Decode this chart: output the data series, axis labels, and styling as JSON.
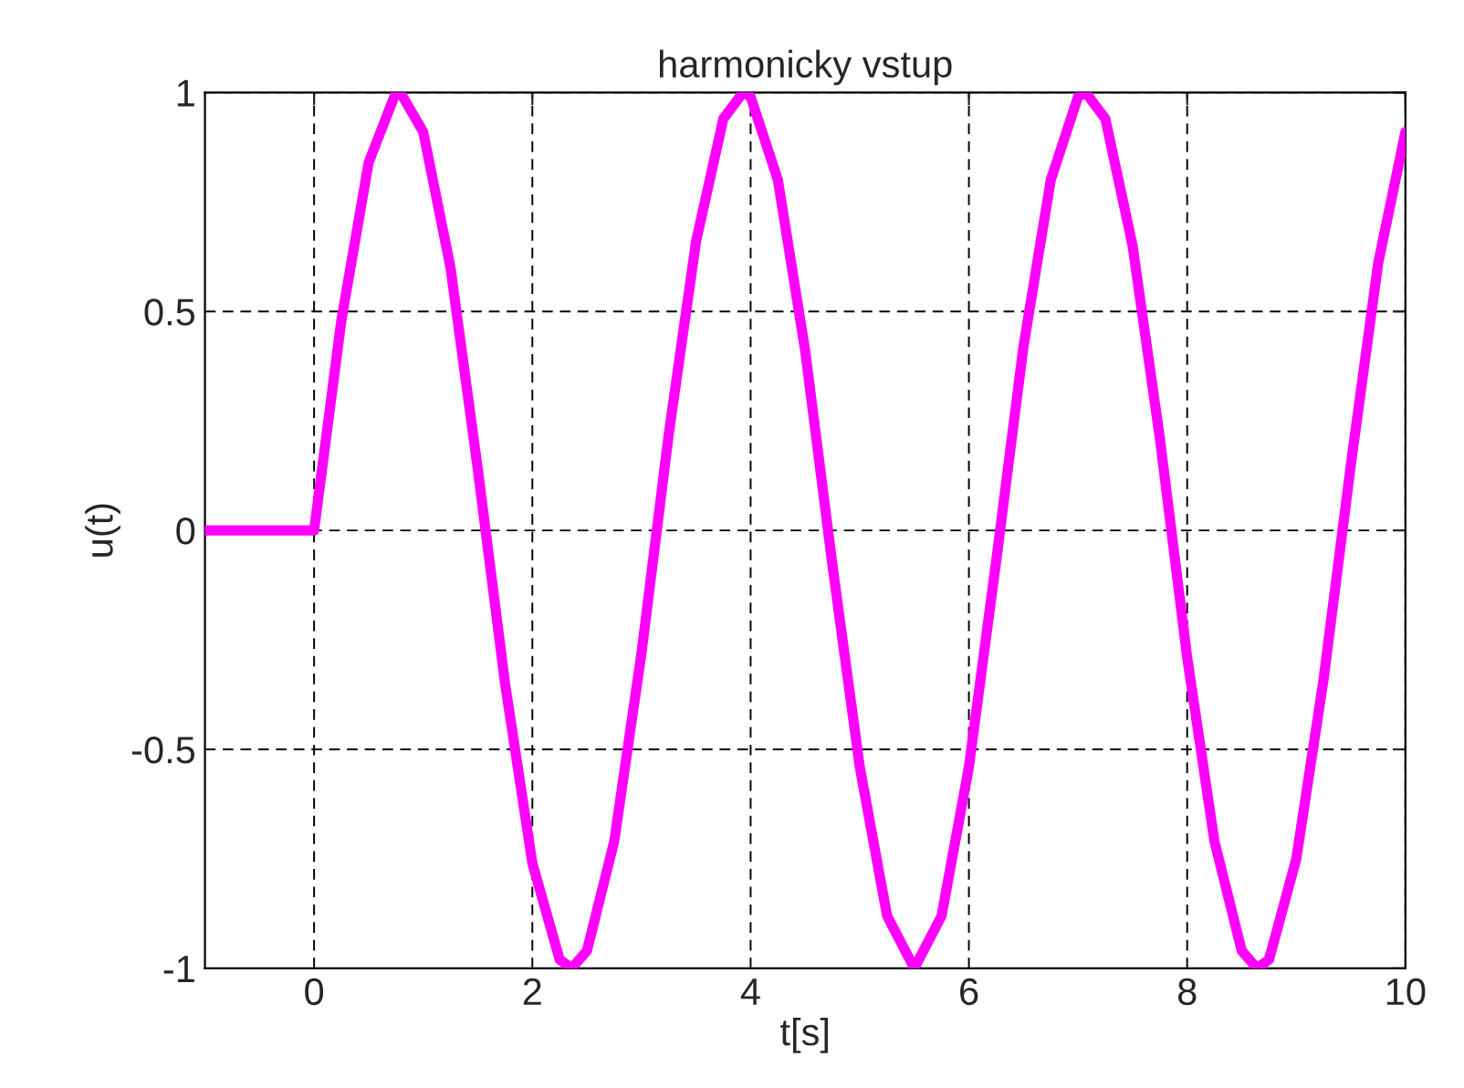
{
  "chart_data": {
    "type": "line",
    "title": "harmonicky vstup",
    "xlabel": "t[s]",
    "ylabel": "u(t)",
    "series": [
      {
        "color": "#ff00ff",
        "x": [
          -1,
          0,
          0.25,
          0.5,
          0.75,
          0.79,
          1,
          1.25,
          1.5,
          1.75,
          2,
          2.25,
          2.36,
          2.5,
          2.75,
          3,
          3.25,
          3.5,
          3.75,
          3.93,
          4,
          4.25,
          4.5,
          4.75,
          5,
          5.25,
          5.5,
          5.75,
          6,
          6.25,
          6.5,
          6.75,
          7,
          7.07,
          7.25,
          7.5,
          7.75,
          8,
          8.25,
          8.5,
          8.64,
          8.75,
          9,
          9.25,
          9.5,
          9.75,
          10
        ],
        "values": [
          0,
          0,
          0.48,
          0.84,
          1.0,
          1.0,
          0.91,
          0.6,
          0.14,
          -0.35,
          -0.76,
          -0.98,
          -1.0,
          -0.96,
          -0.71,
          -0.28,
          0.22,
          0.66,
          0.94,
          1.0,
          0.99,
          0.8,
          0.41,
          -0.08,
          -0.54,
          -0.88,
          -1.0,
          -0.88,
          -0.54,
          -0.07,
          0.42,
          0.8,
          0.99,
          1.0,
          0.94,
          0.65,
          0.21,
          -0.29,
          -0.71,
          -0.96,
          -1.0,
          -0.98,
          -0.75,
          -0.34,
          0.15,
          0.61,
          0.91
        ]
      }
    ],
    "xlim": [
      -1,
      10
    ],
    "ylim": [
      -1,
      1
    ],
    "xticks": [
      0,
      2,
      4,
      6,
      8,
      10
    ],
    "yticks": [
      -1,
      -0.5,
      0,
      0.5,
      1
    ],
    "grid": true,
    "line_style": "solid",
    "marker": "none"
  }
}
